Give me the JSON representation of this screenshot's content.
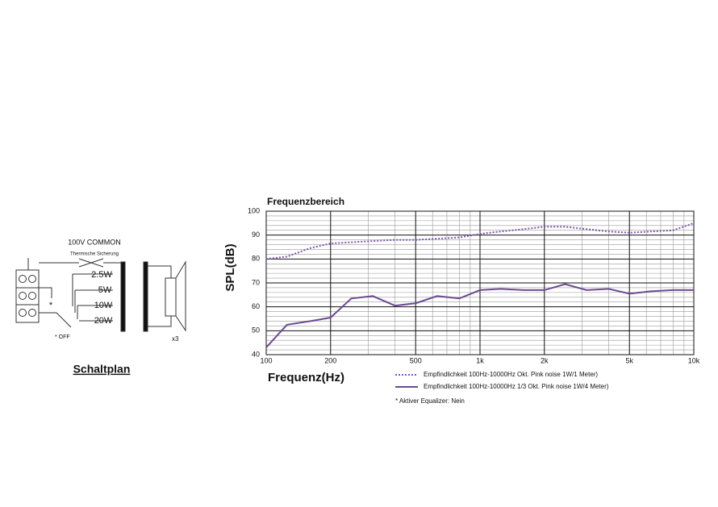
{
  "chart_data": {
    "type": "line",
    "title": "Frequenzbereich",
    "ylabel": "SPL(dB)",
    "xlabel": "Frequenz(Hz)",
    "x": [
      100,
      125,
      160,
      200,
      250,
      315,
      400,
      500,
      630,
      800,
      1000,
      1250,
      1600,
      2000,
      2500,
      3150,
      4000,
      5000,
      6300,
      8000,
      10000
    ],
    "series": [
      {
        "name": "Empfindlichkeit 100Hz-10000Hz Okt. Pink noise 1W/1 Meter)",
        "color": "#7b55b0",
        "style": "dotted",
        "values": [
          80,
          81,
          84.5,
          86.5,
          87,
          87.5,
          88,
          88,
          88.5,
          89,
          90.5,
          91.5,
          92.5,
          93.5,
          93.5,
          92.5,
          91.5,
          91,
          91.5,
          92,
          95
        ]
      },
      {
        "name": "Empfindlichkeit 100Hz-10000Hz 1/3 Okt. Pink noise 1W/4 Meter)",
        "color": "#6a4a93",
        "style": "solid",
        "values": [
          43,
          52.5,
          54,
          55.5,
          63.5,
          64.5,
          60.5,
          61.5,
          64.5,
          63.5,
          67,
          67.5,
          67,
          67,
          69.5,
          67,
          67.5,
          65.5,
          66.5,
          67,
          67
        ]
      }
    ],
    "xlim": [
      100,
      10000
    ],
    "xscale": "log",
    "xticks": [
      100,
      200,
      500,
      {
        "value": 1000,
        "label": "1k"
      },
      {
        "value": 2000,
        "label": "2k"
      },
      {
        "value": 5000,
        "label": "5k"
      },
      {
        "value": 10000,
        "label": "10k"
      }
    ],
    "ylim": [
      40,
      100
    ],
    "yticks": [
      40,
      50,
      60,
      70,
      80,
      90,
      100
    ],
    "grid": true,
    "note": "* Aktiver Equalizer: Nein"
  },
  "schematic": {
    "title": "Schaltplan",
    "common": "100V COMMON",
    "fuse": "Thermische Sicherung",
    "taps": [
      "2.5W",
      "5W",
      "10W",
      "20W"
    ],
    "marker": "*",
    "off": "* OFF",
    "count": "x3"
  }
}
